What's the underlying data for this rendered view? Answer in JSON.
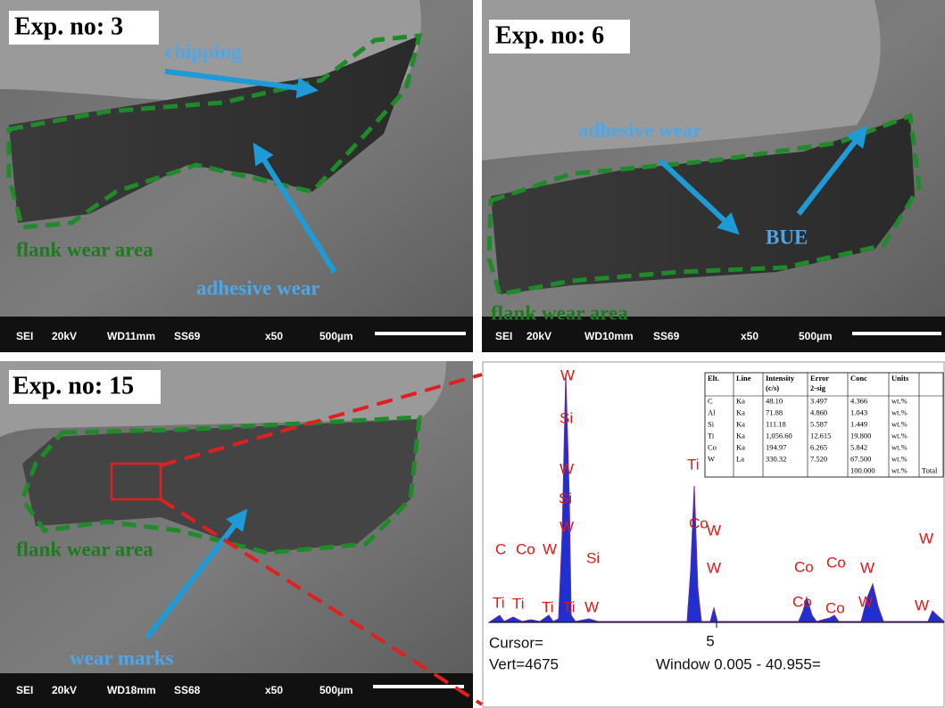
{
  "panels": [
    {
      "label": "Exp. no: 3",
      "annotations": [
        "chipping",
        "adhesive wear",
        "flank wear area"
      ],
      "info": [
        "SEI",
        "20kV",
        "WD11mm",
        "SS69",
        "x50",
        "500µm"
      ]
    },
    {
      "label": "Exp. no: 6",
      "annotations": [
        "adhesive wear",
        "BUE",
        "flank wear area"
      ],
      "info": [
        "SEI",
        "20kV",
        "WD10mm",
        "SS69",
        "x50",
        "500µm"
      ]
    },
    {
      "label": "Exp. no: 15",
      "annotations": [
        "flank wear area",
        "wear marks"
      ],
      "info": [
        "SEI",
        "20kV",
        "WD18mm",
        "SS68",
        "x50",
        "500µm"
      ]
    }
  ],
  "eds": {
    "table": {
      "header": [
        "Elt.",
        "Line",
        "Intensity (c/s)",
        "Error 2-sig",
        "Conc",
        "Units",
        ""
      ],
      "rows": [
        [
          "C",
          "Ka",
          "48.10",
          "3.497",
          "4.366",
          "wt.%",
          ""
        ],
        [
          "Al",
          "Ka",
          "71.88",
          "4.860",
          "1.043",
          "wt.%",
          ""
        ],
        [
          "Si",
          "Ka",
          "111.18",
          "5.587",
          "1.449",
          "wt.%",
          ""
        ],
        [
          "Ti",
          "Ka",
          "1,056.60",
          "12.615",
          "19.800",
          "wt.%",
          ""
        ],
        [
          "Co",
          "Ka",
          "194.97",
          "6.265",
          "5.842",
          "wt.%",
          ""
        ],
        [
          "W",
          "La",
          "330.32",
          "7.520",
          "67.500",
          "wt.%",
          ""
        ],
        [
          "",
          "",
          "",
          "",
          "100.000",
          "wt.%",
          "Total"
        ]
      ]
    },
    "peak_labels": [
      "W",
      "Si",
      "W",
      "Si",
      "W",
      "Ti",
      "Co",
      "W",
      "W",
      "C",
      "Co",
      "W",
      "Si",
      "W",
      "Ti",
      "Ti",
      "Ti",
      "Ti",
      "Co",
      "Co",
      "W",
      "W",
      "Co",
      "Co",
      "W",
      "W"
    ],
    "axis_tick": "5",
    "cursor": "Cursor=",
    "vert": "Vert=4675",
    "window": "Window 0.005 - 40.955="
  }
}
